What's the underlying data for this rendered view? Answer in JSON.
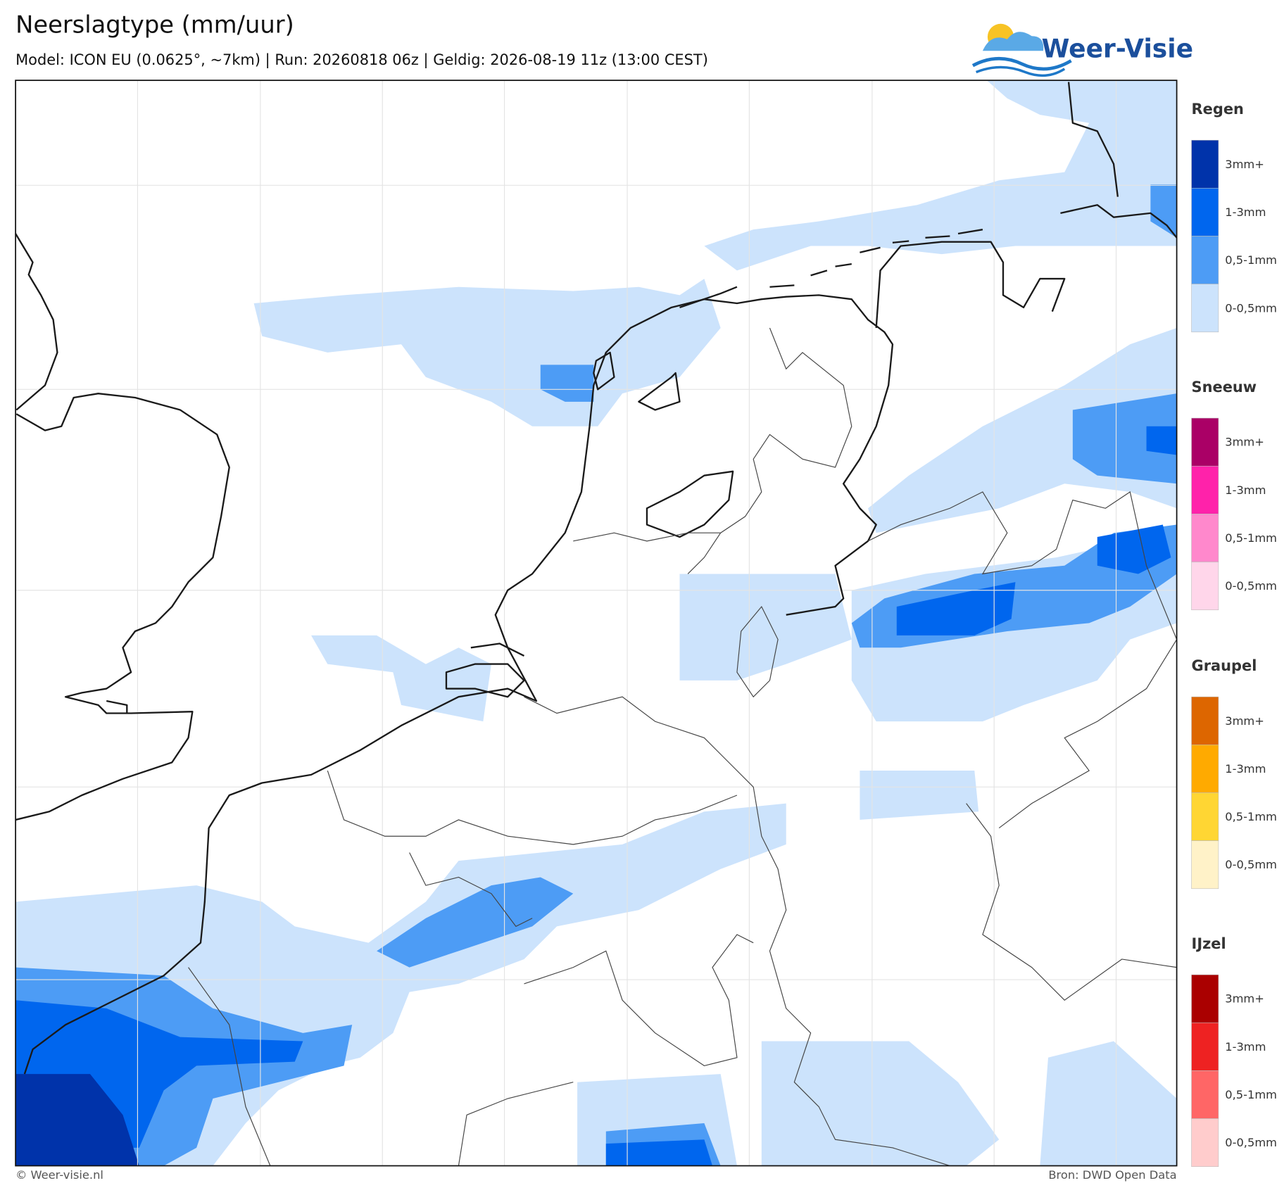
{
  "header": {
    "title": "Neerslagtype (mm/uur)",
    "subtitle": "Model: ICON EU (0.0625°, ~7km)  |  Run: 20260818 06z  |  Geldig: 2026-08-19 11z (13:00 CEST)"
  },
  "logo": {
    "text": "Weer-Visie"
  },
  "legend": {
    "groups": [
      {
        "title": "Regen",
        "colors": [
          "#0033aa",
          "#0066ee",
          "#4d9cf5",
          "#cce3fc"
        ],
        "labels": [
          "3mm+",
          "1-3mm",
          "0,5-1mm",
          "0-0,5mm"
        ]
      },
      {
        "title": "Sneeuw",
        "colors": [
          "#aa0066",
          "#ff22aa",
          "#ff88cc",
          "#ffd6ea"
        ],
        "labels": [
          "3mm+",
          "1-3mm",
          "0,5-1mm",
          "0-0,5mm"
        ]
      },
      {
        "title": "Graupel",
        "colors": [
          "#dd6600",
          "#ffaa00",
          "#ffd633",
          "#fff2c8"
        ],
        "labels": [
          "3mm+",
          "1-3mm",
          "0,5-1mm",
          "0-0,5mm"
        ]
      },
      {
        "title": "IJzel",
        "colors": [
          "#aa0000",
          "#ee2222",
          "#ff6666",
          "#ffcccc"
        ],
        "labels": [
          "3mm+",
          "1-3mm",
          "0,5-1mm",
          "0-0,5mm"
        ]
      }
    ]
  },
  "footer": {
    "left": "© Weer-visie.nl",
    "right": "Bron: DWD Open Data"
  }
}
